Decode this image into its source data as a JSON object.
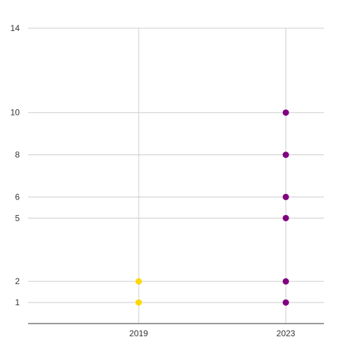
{
  "chart_data": {
    "type": "scatter",
    "x_categories": [
      "2019",
      "2023"
    ],
    "y_ticks": [
      1,
      2,
      5,
      6,
      8,
      10,
      14
    ],
    "ylim": [
      0,
      14
    ],
    "grid": true,
    "series": [
      {
        "color": "#FFD700",
        "points": [
          {
            "x": "2019",
            "y": 1
          },
          {
            "x": "2019",
            "y": 2
          }
        ]
      },
      {
        "color": "#800080",
        "points": [
          {
            "x": "2023",
            "y": 1
          },
          {
            "x": "2023",
            "y": 2
          },
          {
            "x": "2023",
            "y": 5
          },
          {
            "x": "2023",
            "y": 6
          },
          {
            "x": "2023",
            "y": 8
          },
          {
            "x": "2023",
            "y": 10
          }
        ]
      }
    ],
    "colors": {
      "grid": "#cccccc",
      "axis": "#333333"
    }
  }
}
